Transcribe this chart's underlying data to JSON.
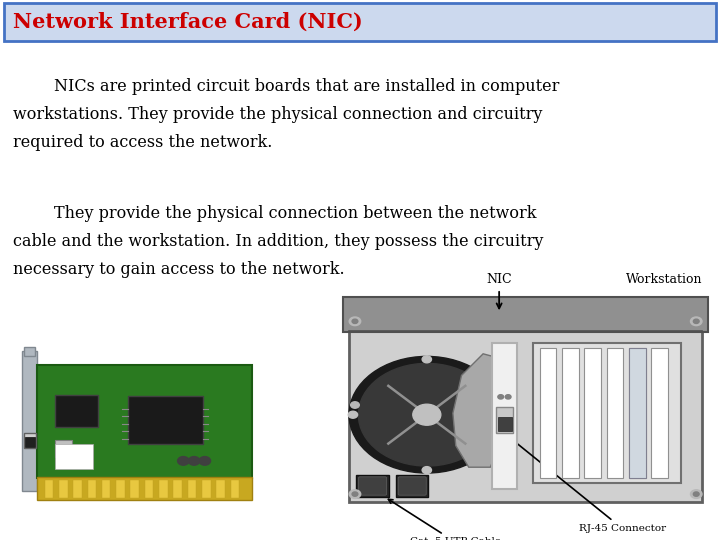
{
  "title": "Network Interface Card (NIC)",
  "title_color": "#cc0000",
  "title_bg_color": "#ccd9ee",
  "title_border_color": "#4472c4",
  "body_bg_color": "#ffffff",
  "para1_line1": "        NICs are printed circuit boards that are installed in computer",
  "para1_line2": "workstations. They provide the physical connection and circuitry",
  "para1_line3": "required to access the network.",
  "para2_line1": "        They provide the physical connection between the network",
  "para2_line2": "cable and the workstation. In addition, they possess the circuitry",
  "para2_line3": "necessary to gain access to the network.",
  "text_color": "#000000",
  "font_family": "DejaVu Serif",
  "title_fontsize": 15,
  "body_fontsize": 11.5
}
